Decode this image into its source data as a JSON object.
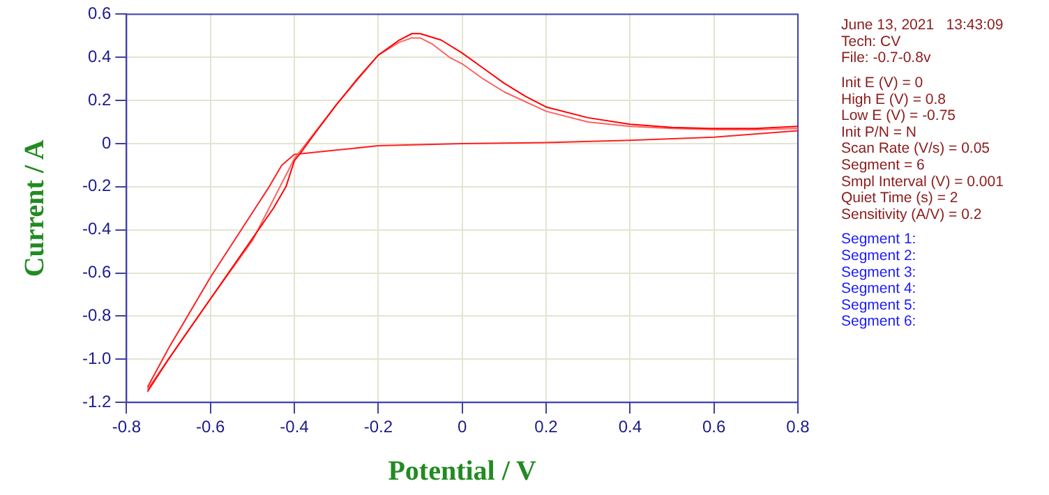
{
  "chart_data": {
    "type": "line",
    "xlabel": "Potential / V",
    "ylabel": "Current / A",
    "xlim": [
      -0.8,
      0.8
    ],
    "xticks": [
      -0.8,
      -0.6,
      -0.4,
      -0.2,
      0,
      0.2,
      0.4,
      0.6,
      0.8
    ],
    "ylim": [
      -1.2,
      0.6
    ],
    "yticks": [
      0.6,
      0.4,
      0.2,
      0,
      -0.2,
      -0.4,
      -0.6,
      -0.8,
      {
        "value": -1,
        "label": "-1.0"
      },
      -1.2
    ],
    "grid": true,
    "legend": false,
    "marker": "none",
    "line_style": "solid",
    "series": [
      {
        "color": "#ff0000",
        "x": [
          -0.75,
          -0.7,
          -0.6,
          -0.5,
          -0.45,
          -0.42,
          -0.4,
          -0.38,
          -0.35,
          -0.3,
          -0.25,
          -0.2,
          -0.15,
          -0.12,
          -0.1,
          -0.05,
          0,
          0.05,
          0.1,
          0.15,
          0.2,
          0.3,
          0.4,
          0.5,
          0.6,
          0.7,
          0.8
        ],
        "values": [
          -1.15,
          -1.0,
          -0.72,
          -0.44,
          -0.3,
          -0.2,
          -0.08,
          -0.03,
          0.05,
          0.18,
          0.3,
          0.41,
          0.48,
          0.51,
          0.51,
          0.48,
          0.42,
          0.35,
          0.28,
          0.22,
          0.17,
          0.12,
          0.09,
          0.075,
          0.07,
          0.07,
          0.08
        ]
      },
      {
        "color": "#ff6060",
        "x": [
          -0.75,
          -0.6,
          -0.5,
          -0.4,
          -0.3,
          -0.2,
          -0.15,
          -0.12,
          -0.1,
          -0.07,
          -0.03,
          0,
          0.05,
          0.1,
          0.2,
          0.3,
          0.4,
          0.5,
          0.6,
          0.7,
          0.8
        ],
        "values": [
          -1.14,
          -0.72,
          -0.45,
          -0.07,
          0.18,
          0.41,
          0.47,
          0.49,
          0.49,
          0.46,
          0.4,
          0.37,
          0.3,
          0.24,
          0.15,
          0.1,
          0.08,
          0.07,
          0.065,
          0.065,
          0.07
        ]
      },
      {
        "color": "#ff2020",
        "x": [
          0.8,
          0.6,
          0.4,
          0.2,
          0,
          -0.2,
          -0.3,
          -0.4,
          -0.43,
          -0.46,
          -0.5,
          -0.6,
          -0.7,
          -0.75
        ],
        "values": [
          0.06,
          0.03,
          0.015,
          0.005,
          0,
          -0.01,
          -0.03,
          -0.05,
          -0.1,
          -0.2,
          -0.32,
          -0.62,
          -0.95,
          -1.13
        ]
      }
    ],
    "annotations": [
      "June 13, 2021   13:43:09",
      "Tech: CV",
      "File: -0.7-0.8v",
      "Init E (V) = 0",
      "High E (V) = 0.8",
      "Low E (V) = -0.75",
      "Init P/N = N",
      "Scan Rate (V/s) = 0.05",
      "Segment = 6",
      "Smpl Interval (V) = 0.001",
      "Quiet Time (s) = 2",
      "Sensitivity (A/V) = 0.2",
      "Segment 1:",
      "Segment 2:",
      "Segment 3:",
      "Segment 4:",
      "Segment 5:",
      "Segment 6:"
    ]
  }
}
